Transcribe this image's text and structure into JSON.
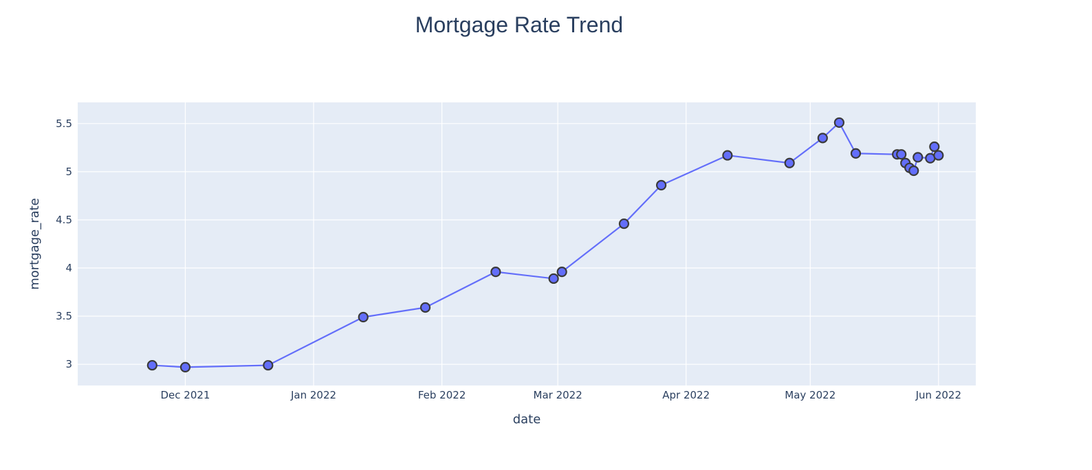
{
  "chart_data": {
    "type": "line",
    "title": "Mortgage Rate Trend",
    "xlabel": "date",
    "ylabel": "mortgage_rate",
    "x_axis_type": "date",
    "xlim": [
      "2021-11-05",
      "2022-06-10"
    ],
    "ylim": [
      2.78,
      5.72
    ],
    "x_ticks": [
      {
        "date": "2021-12-01",
        "label": "Dec 2021"
      },
      {
        "date": "2022-01-01",
        "label": "Jan 2022"
      },
      {
        "date": "2022-02-01",
        "label": "Feb 2022"
      },
      {
        "date": "2022-03-01",
        "label": "Mar 2022"
      },
      {
        "date": "2022-04-01",
        "label": "Apr 2022"
      },
      {
        "date": "2022-05-01",
        "label": "May 2022"
      },
      {
        "date": "2022-06-01",
        "label": "Jun 2022"
      }
    ],
    "y_ticks": [
      3,
      3.5,
      4,
      4.5,
      5,
      5.5
    ],
    "grid": true,
    "legend": "none",
    "colors": {
      "line": "#636efa",
      "marker_fill": "#636efa",
      "marker_outline": "#3a3a3a",
      "plot_background": "#e5ecf6",
      "grid": "#ffffff"
    },
    "series": [
      {
        "x": [
          "2021-11-23",
          "2021-12-01",
          "2021-12-21",
          "2022-01-13",
          "2022-01-28",
          "2022-02-14",
          "2022-02-28",
          "2022-03-02",
          "2022-03-17",
          "2022-03-26",
          "2022-04-11",
          "2022-04-26",
          "2022-05-04",
          "2022-05-08",
          "2022-05-12",
          "2022-05-22",
          "2022-05-23",
          "2022-05-24",
          "2022-05-25",
          "2022-05-26",
          "2022-05-27",
          "2022-05-30",
          "2022-05-31",
          "2022-06-01"
        ],
        "y": [
          2.99,
          2.97,
          2.99,
          3.49,
          3.59,
          3.96,
          3.89,
          3.96,
          4.46,
          4.86,
          5.17,
          5.09,
          5.35,
          5.51,
          5.19,
          5.18,
          5.18,
          5.09,
          5.04,
          5.01,
          5.15,
          5.14,
          5.26,
          5.17
        ]
      }
    ]
  }
}
